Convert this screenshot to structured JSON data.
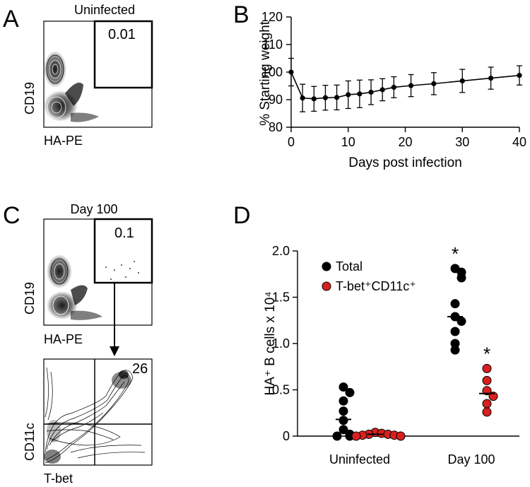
{
  "panels": {
    "A": {
      "letter": "A",
      "title": "Uninfected",
      "x_label": "HA-PE",
      "y_label": "CD19",
      "gate_value": "0.01"
    },
    "C": {
      "letter": "C",
      "title": "Day 100",
      "x_label": "HA-PE",
      "y_label": "CD19",
      "gate_value": "0.1",
      "sub_x_label": "T-bet",
      "sub_y_label": "CD11c",
      "sub_gate_value": "26"
    },
    "B": {
      "letter": "B"
    },
    "D": {
      "letter": "D"
    }
  },
  "chart_data": [
    {
      "panel": "B",
      "type": "line",
      "xlabel": "Days post infection",
      "ylabel": "% Starting weight",
      "xlim": [
        0,
        40
      ],
      "ylim": [
        80,
        120
      ],
      "x_ticks": [
        0,
        10,
        20,
        30,
        40
      ],
      "y_ticks": [
        80,
        90,
        100,
        110,
        120
      ],
      "series": [
        {
          "name": "weight",
          "x": [
            0,
            2,
            4,
            6,
            8,
            10,
            12,
            14,
            16,
            18,
            21,
            25,
            30,
            35,
            40
          ],
          "y": [
            100,
            90.6,
            90.3,
            90.7,
            90.8,
            91.8,
            92.1,
            92.7,
            93.6,
            94.5,
            95.1,
            95.8,
            96.8,
            97.8,
            98.8
          ],
          "err": [
            5,
            5,
            4.5,
            4.5,
            4.5,
            5,
            5,
            4.5,
            4,
            3.8,
            4,
            4,
            4.2,
            4,
            3.5
          ]
        }
      ]
    },
    {
      "panel": "D",
      "type": "scatter",
      "ylabel": "HA⁺ B cells x 10⁴",
      "ylim": [
        0,
        2.0
      ],
      "y_ticks": [
        "0",
        "0.5",
        "1.0",
        "1.5",
        "2.0"
      ],
      "categories": [
        "Uninfected",
        "Day 100"
      ],
      "legend": [
        {
          "name": "Total",
          "color": "#000000"
        },
        {
          "name": "T-bet⁺CD11c⁺",
          "color": "#d92020"
        }
      ],
      "series": [
        {
          "name": "Total",
          "color": "#000000",
          "groups": [
            {
              "category": "Uninfected",
              "values": [
                0.53,
                0.47,
                0.38,
                0.27,
                0.17,
                0.07,
                0.02,
                0.0,
                0.0
              ],
              "median": 0.18,
              "significant": false
            },
            {
              "category": "Day 100",
              "values": [
                1.81,
                1.77,
                1.71,
                1.43,
                1.29,
                1.24,
                1.13,
                1.0,
                0.93
              ],
              "median": 1.29,
              "significant": true
            }
          ]
        },
        {
          "name": "T-bet⁺CD11c⁺",
          "color": "#d92020",
          "groups": [
            {
              "category": "Uninfected",
              "values": [
                0.04,
                0.03,
                0.02,
                0.02,
                0.01,
                0.01,
                0.0,
                0.0
              ],
              "median": 0.02,
              "significant": false
            },
            {
              "category": "Day 100",
              "values": [
                0.73,
                0.6,
                0.49,
                0.43,
                0.35,
                0.26
              ],
              "median": 0.46,
              "significant": true
            }
          ]
        }
      ],
      "significance_marker": "*"
    }
  ]
}
